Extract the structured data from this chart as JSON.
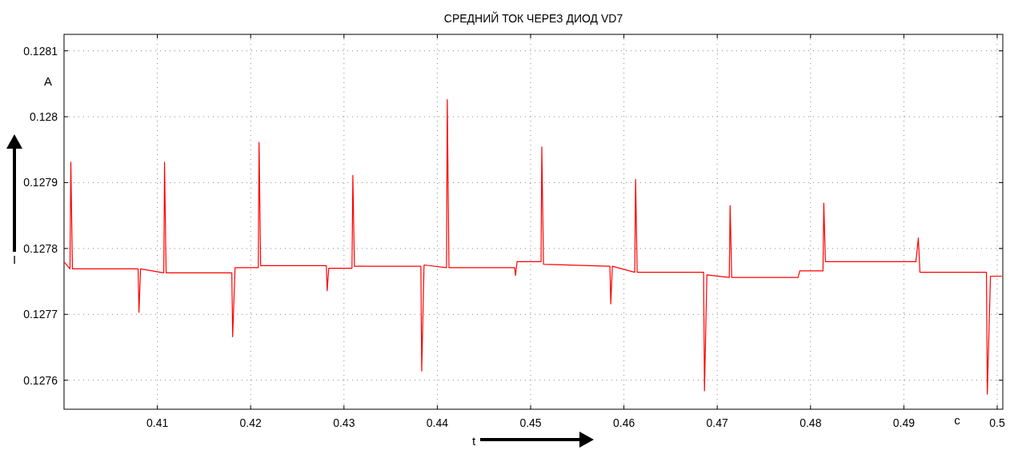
{
  "chart_data": {
    "type": "line",
    "title": "СРЕДНИЙ ТОК ЧЕРЕЗ ДИОД VD7",
    "xlabel": "t",
    "ylabel": "I",
    "annotations": [
      "A",
      "c"
    ],
    "series": [
      {
        "color": "#ff0000",
        "x": [
          0.40004,
          0.40064,
          0.40073,
          0.4009,
          0.40794,
          0.40803,
          0.4082,
          0.41069,
          0.41077,
          0.41094,
          0.41798,
          0.41807,
          0.41833,
          0.42082,
          0.4209,
          0.42107,
          0.42811,
          0.4282,
          0.42837,
          0.43086,
          0.43095,
          0.43112,
          0.43824,
          0.43833,
          0.43858,
          0.44099,
          0.44107,
          0.44125,
          0.44829,
          0.44838,
          0.44855,
          0.45112,
          0.4512,
          0.45138,
          0.4585,
          0.45859,
          0.45876,
          0.46116,
          0.46125,
          0.46142,
          0.46854,
          0.46863,
          0.46889,
          0.47129,
          0.47138,
          0.47155,
          0.47867,
          0.47884,
          0.48133,
          0.48142,
          0.48159,
          0.4888,
          0.49129,
          0.49155,
          0.49172,
          0.49885,
          0.49894,
          0.49928,
          0.5005
        ],
        "values": [
          0.127779,
          0.127769,
          0.127931,
          0.127769,
          0.127769,
          0.127703,
          0.127769,
          0.127763,
          0.127931,
          0.127763,
          0.127763,
          0.127666,
          0.127771,
          0.127771,
          0.127961,
          0.127774,
          0.127774,
          0.127736,
          0.12777,
          0.12777,
          0.127911,
          0.127773,
          0.127773,
          0.127614,
          0.127775,
          0.127771,
          0.128026,
          0.127771,
          0.127771,
          0.127759,
          0.12778,
          0.12778,
          0.127954,
          0.127776,
          0.127773,
          0.127716,
          0.127773,
          0.127764,
          0.127905,
          0.127764,
          0.127764,
          0.127584,
          0.12776,
          0.127756,
          0.127865,
          0.127756,
          0.127756,
          0.127766,
          0.127766,
          0.127869,
          0.12778,
          0.12778,
          0.12778,
          0.127816,
          0.127764,
          0.127764,
          0.127579,
          0.127758,
          0.127758
        ]
      }
    ],
    "xlim": [
      0.4,
      0.5006
    ],
    "ylim": [
      0.127556,
      0.128125
    ],
    "xticks": [
      0.41,
      0.42,
      0.43,
      0.44,
      0.45,
      0.46,
      0.47,
      0.48,
      0.49,
      0.5
    ],
    "yticks": [
      0.1276,
      0.1277,
      0.1278,
      0.1279,
      0.128,
      0.1281
    ],
    "grid": true,
    "line_style": "solid",
    "marker": "none"
  }
}
